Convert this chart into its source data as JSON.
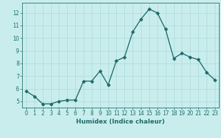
{
  "x": [
    0,
    1,
    2,
    3,
    4,
    5,
    6,
    7,
    8,
    9,
    10,
    11,
    12,
    13,
    14,
    15,
    16,
    17,
    18,
    19,
    20,
    21,
    22,
    23
  ],
  "y": [
    5.8,
    5.4,
    4.8,
    4.8,
    5.0,
    5.1,
    5.1,
    6.6,
    6.6,
    7.4,
    6.3,
    8.2,
    8.5,
    10.5,
    11.5,
    12.3,
    12.0,
    10.7,
    8.4,
    8.8,
    8.5,
    8.3,
    7.3,
    6.7
  ],
  "bg_color": "#c9eded",
  "line_color": "#1e6b6b",
  "marker_color": "#1e6b6b",
  "grid_color": "#aad8d8",
  "xlabel": "Humidex (Indice chaleur)",
  "ylim": [
    4.5,
    12.8
  ],
  "xlim": [
    -0.5,
    23.5
  ],
  "yticks": [
    5,
    6,
    7,
    8,
    9,
    10,
    11,
    12
  ],
  "xticks": [
    0,
    1,
    2,
    3,
    4,
    5,
    6,
    7,
    8,
    9,
    10,
    11,
    12,
    13,
    14,
    15,
    16,
    17,
    18,
    19,
    20,
    21,
    22,
    23
  ],
  "font_color": "#1e6b6b",
  "tick_fontsize": 5.5,
  "xlabel_fontsize": 6.5
}
